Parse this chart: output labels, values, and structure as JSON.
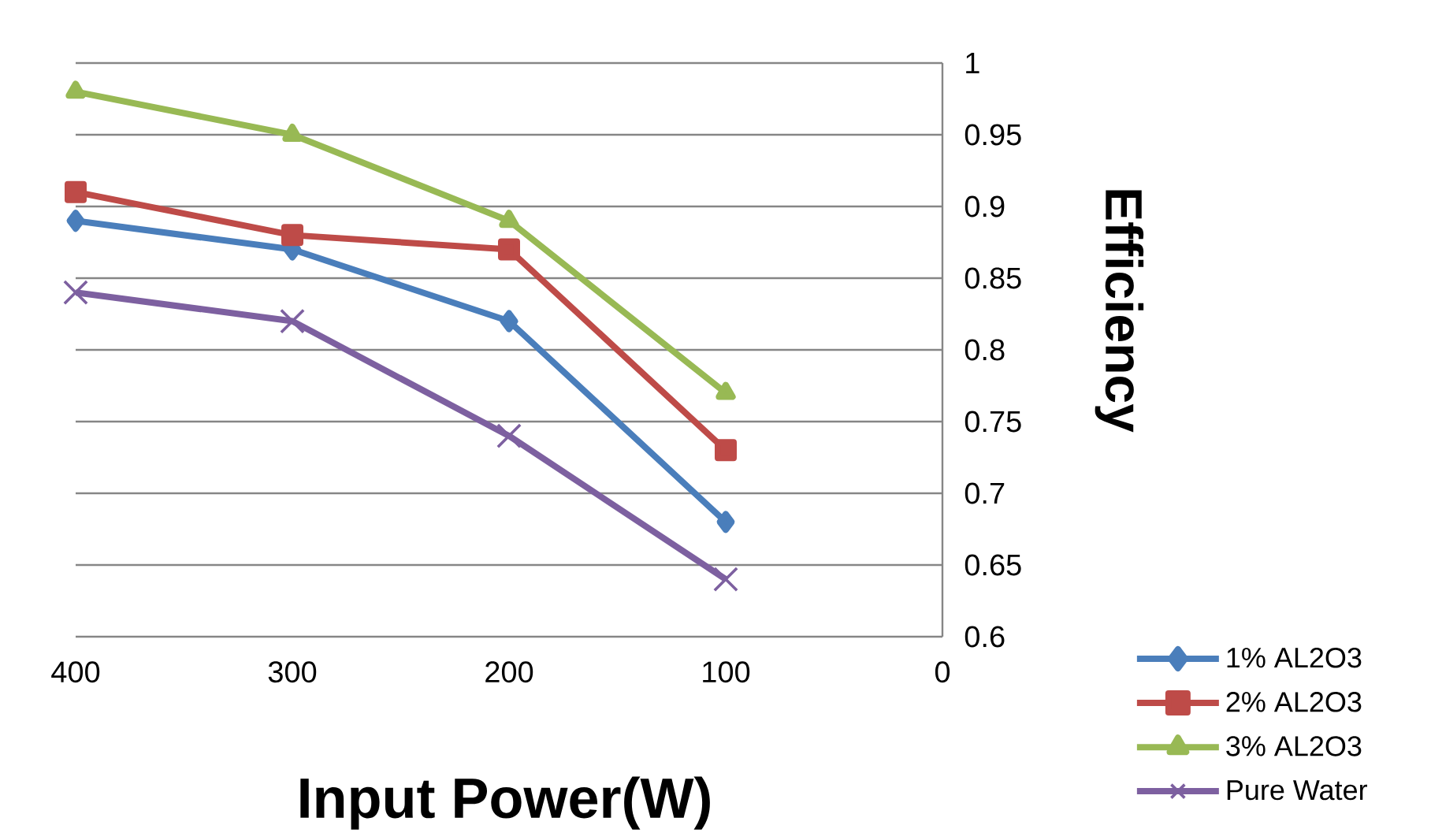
{
  "chart_data": {
    "type": "line",
    "xlabel": "Input Power(W)",
    "ylabel": "Efficiency",
    "x": [
      400,
      300,
      200,
      100
    ],
    "series": [
      {
        "name": "1% AL2O3",
        "color": "#4a7ebb",
        "marker": "diamond",
        "values": [
          0.89,
          0.87,
          0.82,
          0.68
        ]
      },
      {
        "name": "2% AL2O3",
        "color": "#be4b48",
        "marker": "square",
        "values": [
          0.91,
          0.88,
          0.87,
          0.73
        ]
      },
      {
        "name": "3% AL2O3",
        "color": "#98b954",
        "marker": "triangle",
        "values": [
          0.98,
          0.95,
          0.89,
          0.77
        ]
      },
      {
        "name": "Pure Water",
        "color": "#7d60a0",
        "marker": "cross",
        "values": [
          0.84,
          0.82,
          0.74,
          0.64
        ]
      }
    ],
    "xlim": [
      400,
      0
    ],
    "xticks": [
      400,
      300,
      200,
      100,
      0
    ],
    "ylim": [
      0.6,
      1
    ],
    "yticks": [
      0.6,
      0.65,
      0.7,
      0.75,
      0.8,
      0.85,
      0.9,
      0.95,
      1
    ],
    "grid": "y",
    "legend": "bottom right",
    "line_style": "solid"
  }
}
